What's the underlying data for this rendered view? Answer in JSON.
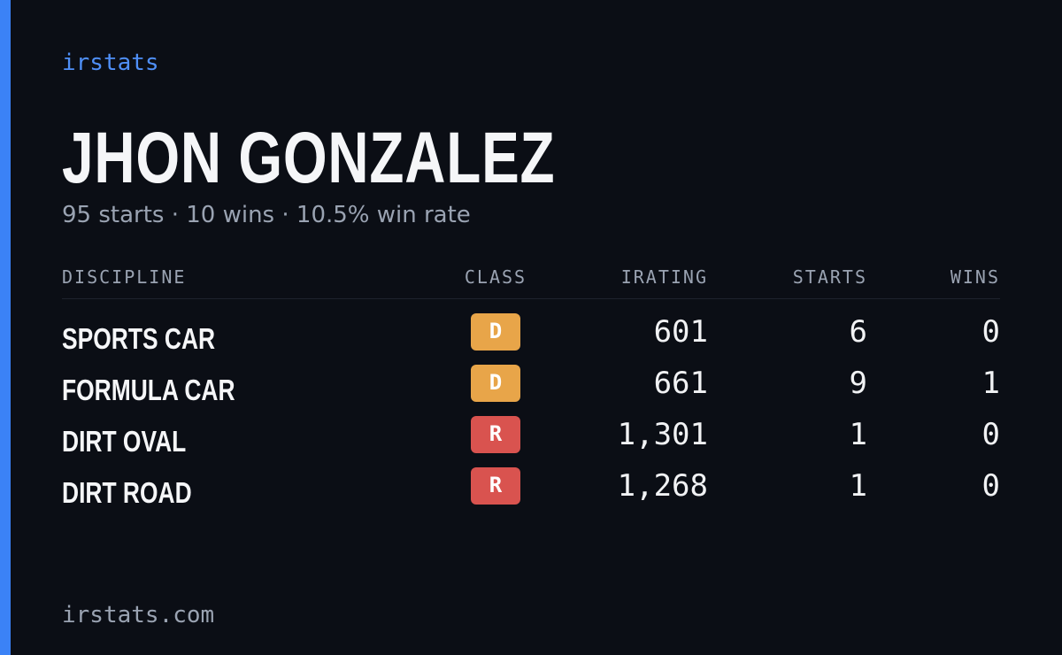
{
  "brand": "irstats",
  "title": "JHON GONZALEZ",
  "subtitle": "95 starts · 10 wins · 10.5% win rate",
  "table": {
    "headers": [
      "DISCIPLINE",
      "CLASS",
      "IRATING",
      "STARTS",
      "WINS"
    ],
    "rows": [
      [
        "SPORTS CAR",
        "D",
        "601",
        "6",
        "0"
      ],
      [
        "FORMULA CAR",
        "D",
        "661",
        "9",
        "1"
      ],
      [
        "DIRT OVAL",
        "R",
        "1,301",
        "1",
        "0"
      ],
      [
        "DIRT ROAD",
        "R",
        "1,268",
        "1",
        "0"
      ]
    ]
  },
  "footer": "irstats.com"
}
